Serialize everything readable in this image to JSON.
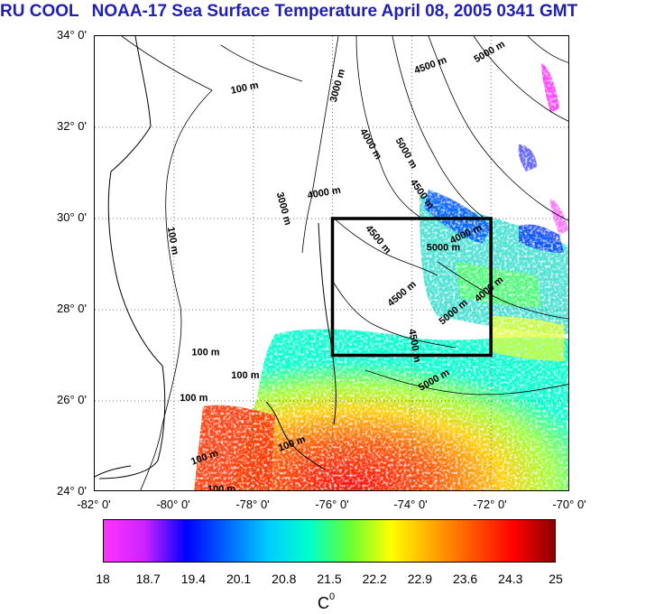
{
  "title": {
    "org": "RU COOL",
    "text": "NOAA-17 Sea Surface Temperature April 08, 2005 0341 GMT"
  },
  "map": {
    "lat_labels": [
      "34° 0'",
      "32° 0'",
      "30° 0'",
      "28° 0'",
      "26° 0'",
      "24° 0'"
    ],
    "lon_labels": [
      "-82° 0'",
      "-80° 0'",
      "-78° 0'",
      "-76° 0'",
      "-74° 0'",
      "-72° 0'",
      "-70° 0'"
    ],
    "lat_range": [
      24,
      34
    ],
    "lon_range": [
      -82,
      -70
    ],
    "box": {
      "lon": [
        -76,
        -72
      ],
      "lat": [
        27,
        30
      ]
    },
    "contour_labels": [
      {
        "text": "100 m",
        "lon": -78.2,
        "lat": 32.8,
        "rot": -12
      },
      {
        "text": "100 m",
        "lon": -80.1,
        "lat": 29.5,
        "rot": 80
      },
      {
        "text": "100 m",
        "lon": -79.2,
        "lat": 27.0,
        "rot": 0
      },
      {
        "text": "100 m",
        "lon": -78.2,
        "lat": 26.5,
        "rot": 0
      },
      {
        "text": "100 m",
        "lon": -79.5,
        "lat": 26.0,
        "rot": 0
      },
      {
        "text": "100 m",
        "lon": -79.2,
        "lat": 24.7,
        "rot": -20
      },
      {
        "text": "100 m",
        "lon": -77.0,
        "lat": 25.0,
        "rot": -20
      },
      {
        "text": "100 m",
        "lon": -78.8,
        "lat": 24.0,
        "rot": 0
      },
      {
        "text": "3000 m",
        "lon": -75.8,
        "lat": 32.9,
        "rot": -75
      },
      {
        "text": "4500 m",
        "lon": -73.5,
        "lat": 33.3,
        "rot": -20
      },
      {
        "text": "5000 m",
        "lon": -72.0,
        "lat": 33.6,
        "rot": -30
      },
      {
        "text": "4000 m",
        "lon": -75.1,
        "lat": 31.6,
        "rot": 60
      },
      {
        "text": "5000 m",
        "lon": -74.2,
        "lat": 31.4,
        "rot": 60
      },
      {
        "text": "3000 m",
        "lon": -77.3,
        "lat": 30.2,
        "rot": 75
      },
      {
        "text": "4000 m",
        "lon": -76.2,
        "lat": 30.5,
        "rot": -10
      },
      {
        "text": "4500 m",
        "lon": -73.8,
        "lat": 30.5,
        "rot": 55
      },
      {
        "text": "4000 m",
        "lon": -72.6,
        "lat": 29.6,
        "rot": -25
      },
      {
        "text": "4500 m",
        "lon": -74.9,
        "lat": 29.5,
        "rot": 50
      },
      {
        "text": "5000 m",
        "lon": -73.2,
        "lat": 29.3,
        "rot": 0
      },
      {
        "text": "4500 m",
        "lon": -74.2,
        "lat": 28.3,
        "rot": -40
      },
      {
        "text": "5000 m",
        "lon": -72.9,
        "lat": 27.9,
        "rot": -40
      },
      {
        "text": "4000 m",
        "lon": -72.0,
        "lat": 28.4,
        "rot": -40
      },
      {
        "text": "4500 m",
        "lon": -74.0,
        "lat": 27.2,
        "rot": 80
      },
      {
        "text": "5000 m",
        "lon": -73.4,
        "lat": 26.4,
        "rot": -30
      }
    ]
  },
  "colorbar": {
    "ticks": [
      "18",
      "18.7",
      "19.4",
      "20.1",
      "20.8",
      "21.5",
      "22.2",
      "22.9",
      "23.6",
      "24.3",
      "25"
    ],
    "unit": "C",
    "unit_sup": "0",
    "colors": [
      "#ff33ff",
      "#cc22ff",
      "#0000ff",
      "#0066ff",
      "#00ccff",
      "#00ffcc",
      "#66ff33",
      "#ffff00",
      "#ffaa00",
      "#ff5500",
      "#ff0000",
      "#8b0000"
    ]
  }
}
